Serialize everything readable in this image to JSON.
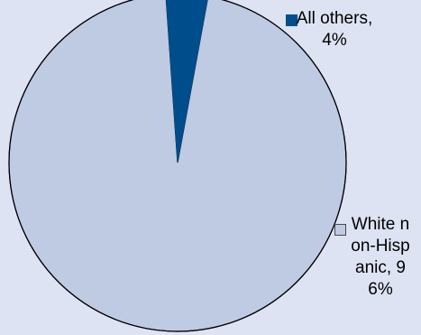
{
  "chart_data": {
    "type": "pie",
    "title": "",
    "slices": [
      {
        "label": "All others, 4%",
        "value": 4,
        "color": "#004d8c"
      },
      {
        "label": "White non-Hispanic, 96%",
        "value": 96,
        "color": "#bfcae3"
      }
    ],
    "start_angle_deg": -4,
    "direction": "clockwise",
    "edge_color": "#000000",
    "legend_marker_white_border": "#4a4a4a"
  }
}
